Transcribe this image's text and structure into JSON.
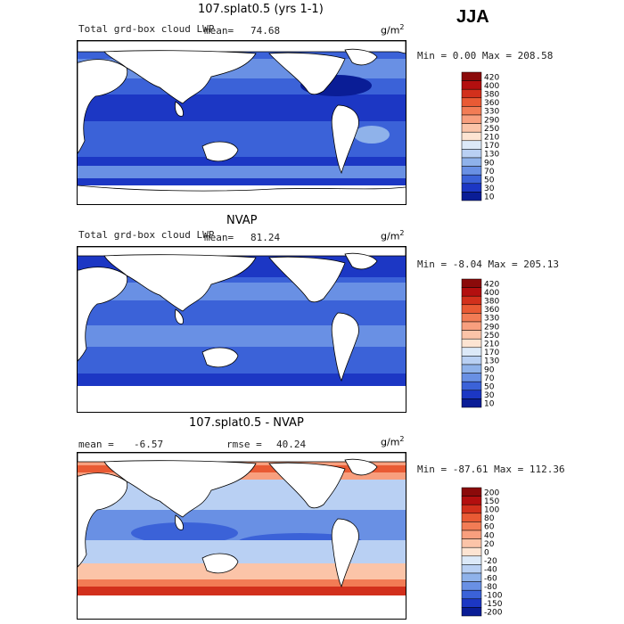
{
  "header": {
    "season": "JJA"
  },
  "panels": [
    {
      "title": "107.splat0.5 (yrs 1-1)",
      "subtitle": "Total grd-box cloud LWP",
      "mean_text": "mean=",
      "mean_value": "74.68",
      "units_base": "g/m",
      "units_exp": "2",
      "stats": "Min =    0.00 Max = 208.58",
      "colorbar_labels": [
        "420",
        "400",
        "380",
        "360",
        "330",
        "290",
        "250",
        "210",
        "170",
        "130",
        "90",
        "70",
        "50",
        "30",
        "10"
      ],
      "colors": [
        "#8b0a0a",
        "#b30f0f",
        "#d2301c",
        "#e95a34",
        "#f27c55",
        "#f89f7e",
        "#fbc4a8",
        "#fde4d2",
        "#dce9f8",
        "#b9d0f3",
        "#8fb2ea",
        "#6990e4",
        "#3b62d8",
        "#1c37c4",
        "#0a1d96"
      ]
    },
    {
      "title": "NVAP",
      "subtitle": "Total grd-box cloud LWP",
      "mean_text": "mean=",
      "mean_value": "81.24",
      "units_base": "g/m",
      "units_exp": "2",
      "stats": "Min =  -8.04 Max = 205.13",
      "colorbar_labels": [
        "420",
        "400",
        "380",
        "360",
        "330",
        "290",
        "250",
        "210",
        "170",
        "130",
        "90",
        "70",
        "50",
        "30",
        "10"
      ],
      "colors": [
        "#8b0a0a",
        "#b30f0f",
        "#d2301c",
        "#e95a34",
        "#f27c55",
        "#f89f7e",
        "#fbc4a8",
        "#fde4d2",
        "#dce9f8",
        "#b9d0f3",
        "#8fb2ea",
        "#6990e4",
        "#3b62d8",
        "#1c37c4",
        "#0a1d96"
      ]
    },
    {
      "title": "107.splat0.5 - NVAP",
      "mean_label": "mean =",
      "mean_value": "-6.57",
      "rmse_label": "rmse =",
      "rmse_value": "40.24",
      "units_base": "g/m",
      "units_exp": "2",
      "stats": "Min = -87.61 Max = 112.36",
      "colorbar_labels": [
        "200",
        "150",
        "100",
        "80",
        "60",
        "40",
        "20",
        "0",
        "-20",
        "-40",
        "-60",
        "-80",
        "-100",
        "-150",
        "-200"
      ],
      "colors": [
        "#8b0a0a",
        "#b30f0f",
        "#d2301c",
        "#e95a34",
        "#f27c55",
        "#f89f7e",
        "#fbc4a8",
        "#fde4d2",
        "#dce9f8",
        "#b9d0f3",
        "#8fb2ea",
        "#6990e4",
        "#3b62d8",
        "#1c37c4",
        "#0a1d96"
      ]
    }
  ],
  "chart_data": [
    {
      "type": "heatmap",
      "title": "107.splat0.5 (yrs 1-1)",
      "variable": "Total grd-box cloud LWP",
      "units": "g/m2",
      "mean": 74.68,
      "min": 0.0,
      "max": 208.58,
      "levels": [
        10,
        30,
        50,
        70,
        90,
        130,
        170,
        210,
        250,
        290,
        330,
        360,
        380,
        400,
        420
      ]
    },
    {
      "type": "heatmap",
      "title": "NVAP",
      "variable": "Total grd-box cloud LWP",
      "units": "g/m2",
      "mean": 81.24,
      "min": -8.04,
      "max": 205.13,
      "levels": [
        10,
        30,
        50,
        70,
        90,
        130,
        170,
        210,
        250,
        290,
        330,
        360,
        380,
        400,
        420
      ]
    },
    {
      "type": "heatmap",
      "title": "107.splat0.5 - NVAP",
      "units": "g/m2",
      "mean": -6.57,
      "rmse": 40.24,
      "min": -87.61,
      "max": 112.36,
      "levels": [
        -200,
        -150,
        -100,
        -80,
        -60,
        -40,
        -20,
        0,
        20,
        40,
        60,
        80,
        100,
        150,
        200
      ]
    }
  ]
}
